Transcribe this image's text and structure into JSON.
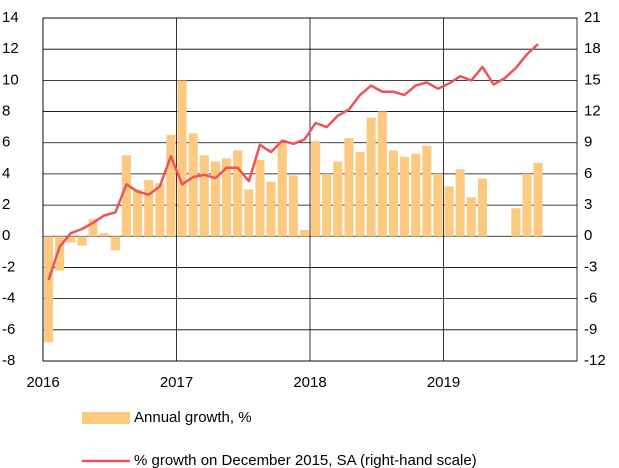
{
  "chart_data": {
    "type": "bar_line",
    "x": [
      2016.042,
      2016.125,
      2016.208,
      2016.292,
      2016.375,
      2016.458,
      2016.542,
      2016.625,
      2016.708,
      2016.792,
      2016.875,
      2016.958,
      2017.042,
      2017.125,
      2017.208,
      2017.292,
      2017.375,
      2017.458,
      2017.542,
      2017.625,
      2017.708,
      2017.792,
      2017.875,
      2017.958,
      2018.042,
      2018.125,
      2018.208,
      2018.292,
      2018.375,
      2018.458,
      2018.542,
      2018.625,
      2018.708,
      2018.792,
      2018.875,
      2018.958,
      2019.042,
      2019.125,
      2019.208,
      2019.292,
      2019.375,
      2019.458,
      2019.542,
      2019.625,
      2019.708
    ],
    "series": [
      {
        "name": "Annual growth, %",
        "color": "#fcc981",
        "kind": "bar",
        "values": [
          -6.8,
          -2.2,
          -0.4,
          -0.6,
          1.1,
          0.2,
          -0.9,
          5.2,
          3.0,
          3.6,
          3.4,
          6.5,
          10.0,
          6.6,
          5.2,
          4.8,
          5.0,
          5.5,
          3.0,
          4.9,
          3.5,
          6.0,
          3.9,
          0.4,
          6.1,
          4.0,
          4.8,
          6.3,
          5.4,
          7.6,
          8.0,
          5.5,
          5.1,
          5.3,
          5.8,
          4.0,
          3.2,
          4.3,
          2.5,
          3.7,
          null,
          null,
          1.8,
          4.0,
          4.7
        ]
      },
      {
        "name": "% growth on December 2015, SA (right-hand scale)",
        "color": "#ef5258",
        "kind": "line",
        "axis": "y2",
        "values": [
          -4.2,
          -1.0,
          0.3,
          0.7,
          1.3,
          2.0,
          2.3,
          5.0,
          4.3,
          4.0,
          4.8,
          7.7,
          5.0,
          5.7,
          5.9,
          5.6,
          6.6,
          6.6,
          5.3,
          8.8,
          8.1,
          9.2,
          8.9,
          9.3,
          10.9,
          10.5,
          11.6,
          12.2,
          13.6,
          14.5,
          13.9,
          13.9,
          13.6,
          14.5,
          14.8,
          14.2,
          14.7,
          15.4,
          15.0,
          16.3,
          14.6,
          15.2,
          16.2,
          17.5,
          18.5
        ]
      }
    ],
    "xlim": [
      2016,
      2020
    ],
    "xticks": [
      2016,
      2017,
      2018,
      2019
    ],
    "ylim": [
      -8,
      14
    ],
    "yticks": [
      -8,
      -6,
      -4,
      -2,
      0,
      2,
      4,
      6,
      8,
      10,
      12,
      14
    ],
    "y2lim": [
      -12,
      21
    ],
    "y2ticks": [
      -12,
      -9,
      -6,
      -3,
      0,
      3,
      6,
      9,
      12,
      15,
      18,
      21
    ],
    "grid": true,
    "legend": "bottom"
  }
}
